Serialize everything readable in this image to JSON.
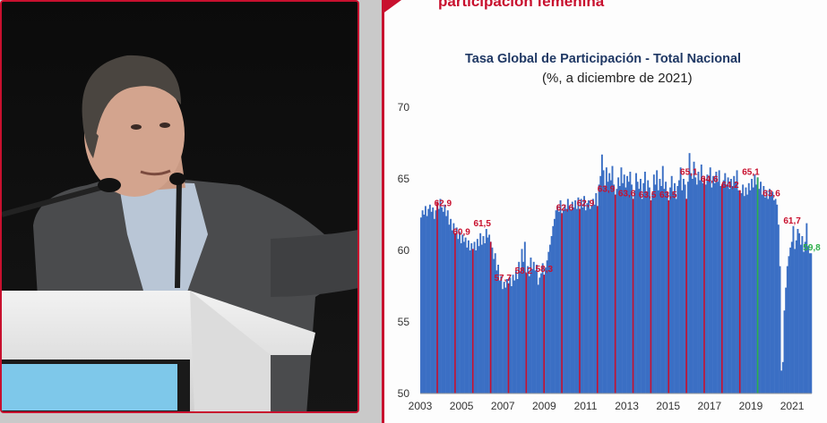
{
  "slide": {
    "heading": "participación femenina"
  },
  "chart_data": {
    "type": "bar",
    "title": "Tasa Global de Participación - Total Nacional",
    "subtitle": "(%, a diciembre de 2021)",
    "xlabel": "",
    "ylabel": "",
    "ylim": [
      50,
      70
    ],
    "yticks": [
      "70",
      "65",
      "60",
      "55",
      "50"
    ],
    "xticks": [
      "2003",
      "2005",
      "2007",
      "2009",
      "2011",
      "2013",
      "2015",
      "2017",
      "2019",
      "2021"
    ],
    "x_start_year": 2003,
    "x_end_year": 2021.95,
    "series": [
      {
        "name": "Tasa Global de Participación",
        "color": "#3b6fc4",
        "values": [
          62.3,
          62.8,
          62.5,
          63.1,
          62.4,
          62.9,
          63.2,
          62.7,
          63.0,
          62.2,
          62.8,
          63.4,
          62.9,
          63.6,
          63.0,
          62.7,
          63.2,
          62.4,
          62.8,
          61.8,
          62.2,
          61.4,
          61.9,
          61.2,
          61.6,
          60.8,
          61.3,
          60.5,
          61.1,
          60.6,
          60.9,
          60.2,
          60.7,
          60.0,
          60.5,
          60.1,
          60.6,
          60.0,
          60.8,
          60.3,
          61.2,
          60.4,
          61.0,
          60.5,
          61.5,
          60.9,
          61.1,
          60.6,
          60.2,
          59.4,
          59.8,
          58.6,
          59.0,
          57.9,
          58.2,
          57.3,
          57.8,
          57.4,
          58.0,
          57.7,
          58.1,
          57.5,
          58.3,
          57.9,
          58.6,
          58.0,
          59.2,
          58.5,
          60.1,
          59.2,
          60.6,
          58.4,
          58.9,
          58.2,
          59.5,
          58.7,
          59.2,
          58.6,
          59.0,
          57.6,
          58.1,
          58.4,
          59.1,
          58.3,
          58.8,
          59.3,
          59.9,
          60.4,
          61.0,
          61.7,
          62.2,
          62.8,
          63.1,
          62.7,
          63.5,
          62.6,
          62.8,
          63.2,
          62.9,
          63.6,
          63.1,
          62.8,
          63.4,
          63.0,
          63.5,
          62.9,
          63.7,
          62.9,
          63.6,
          63.0,
          63.8,
          62.8,
          63.3,
          63.5,
          62.9,
          63.1,
          63.6,
          63.2,
          64.0,
          63.1,
          64.6,
          65.2,
          66.7,
          65.6,
          64.5,
          65.8,
          64.8,
          65.4,
          64.9,
          65.9,
          64.6,
          63.9,
          64.3,
          65.1,
          64.5,
          65.8,
          64.7,
          65.3,
          64.4,
          65.2,
          64.8,
          65.5,
          64.6,
          63.6,
          64.2,
          65.4,
          64.8,
          64.3,
          65.0,
          63.6,
          64.7,
          65.5,
          64.1,
          64.9,
          64.4,
          63.5,
          64.0,
          65.3,
          64.6,
          65.6,
          64.2,
          65.0,
          64.5,
          65.9,
          64.3,
          64.8,
          64.1,
          63.5,
          64.4,
          65.2,
          64.0,
          64.7,
          63.6,
          64.5,
          64.9,
          65.8,
          64.2,
          65.0,
          64.6,
          63.6,
          64.8,
          66.8,
          65.4,
          65.0,
          66.2,
          65.1,
          64.6,
          65.5,
          64.9,
          66.0,
          64.7,
          65.1,
          64.6,
          65.3,
          64.9,
          65.8,
          64.4,
          65.2,
          64.7,
          65.5,
          64.8,
          65.6,
          64.5,
          64.6,
          64.9,
          65.4,
          64.6,
          65.1,
          64.3,
          65.0,
          64.5,
          65.2,
          64.8,
          65.6,
          64.2,
          64.2,
          64.0,
          64.6,
          63.8,
          64.4,
          63.9,
          64.7,
          64.2,
          65.0,
          64.4,
          65.3,
          64.6,
          65.1,
          64.3,
          64.8,
          63.9,
          64.5,
          63.7,
          64.2,
          63.6,
          64.3,
          63.9,
          64.1,
          63.5,
          63.6,
          63.2,
          61.8,
          58.9,
          51.6,
          52.2,
          55.8,
          57.4,
          58.9,
          59.6,
          60.2,
          60.6,
          61.7,
          60.1,
          60.7,
          61.5,
          61.2,
          60.4,
          61.0,
          59.9,
          60.6,
          61.9,
          60.3,
          59.8,
          59.8
        ]
      }
    ],
    "annotations": [
      {
        "label": "62,9",
        "x": 2004.1,
        "y": 62.9,
        "color": "#c8102e"
      },
      {
        "label": "60,9",
        "x": 2005.0,
        "y": 60.9,
        "color": "#c8102e"
      },
      {
        "label": "61,5",
        "x": 2006.0,
        "y": 61.5,
        "color": "#c8102e"
      },
      {
        "label": "57,7",
        "x": 2007.0,
        "y": 57.7,
        "color": "#c8102e"
      },
      {
        "label": "58,2",
        "x": 2008.0,
        "y": 58.2,
        "color": "#c8102e"
      },
      {
        "label": "58,3",
        "x": 2009.0,
        "y": 58.3,
        "color": "#c8102e"
      },
      {
        "label": "62,6",
        "x": 2010.0,
        "y": 62.6,
        "color": "#c8102e"
      },
      {
        "label": "62,9",
        "x": 2011.0,
        "y": 62.9,
        "color": "#c8102e"
      },
      {
        "label": "63,9",
        "x": 2012.0,
        "y": 63.9,
        "color": "#c8102e"
      },
      {
        "label": "63,6",
        "x": 2013.0,
        "y": 63.6,
        "color": "#c8102e"
      },
      {
        "label": "63,5",
        "x": 2014.0,
        "y": 63.5,
        "color": "#c8102e"
      },
      {
        "label": "63,5",
        "x": 2015.0,
        "y": 63.5,
        "color": "#c8102e"
      },
      {
        "label": "65,1",
        "x": 2016.0,
        "y": 65.1,
        "color": "#c8102e"
      },
      {
        "label": "64,6",
        "x": 2017.0,
        "y": 64.6,
        "color": "#c8102e"
      },
      {
        "label": "64,2",
        "x": 2018.0,
        "y": 64.2,
        "color": "#c8102e"
      },
      {
        "label": "65,1",
        "x": 2019.0,
        "y": 65.1,
        "color": "#c8102e"
      },
      {
        "label": "63,6",
        "x": 2020.0,
        "y": 63.6,
        "color": "#c8102e"
      },
      {
        "label": "61,7",
        "x": 2021.0,
        "y": 61.7,
        "color": "#c8102e"
      },
      {
        "label": "59,8",
        "x": 2021.95,
        "y": 59.8,
        "color": "#2eaf4a"
      }
    ],
    "december_markers": {
      "color": "#c8102e",
      "last_color": "#2eaf4a"
    }
  }
}
